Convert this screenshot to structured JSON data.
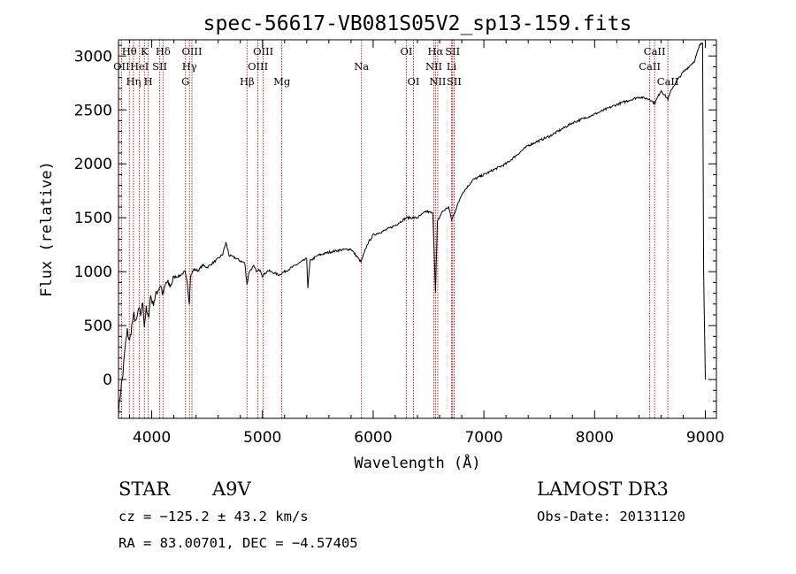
{
  "chart_data": {
    "type": "line",
    "title": "spec-56617-VB081S05V2_sp13-159.fits",
    "xlabel": "Wavelength (Å)",
    "ylabel": "Flux (relative)",
    "xlim": [
      3700,
      9100
    ],
    "ylim": [
      -360,
      3150
    ],
    "xticks": [
      4000,
      5000,
      6000,
      7000,
      8000,
      9000
    ],
    "yticks": [
      0,
      500,
      1000,
      1500,
      2000,
      2500,
      3000
    ],
    "grid": false,
    "series": [
      {
        "name": "spectrum",
        "x": [
          3700,
          3720,
          3740,
          3760,
          3780,
          3800,
          3820,
          3840,
          3860,
          3880,
          3900,
          3920,
          3933,
          3950,
          3968,
          3990,
          4010,
          4050,
          4080,
          4101,
          4130,
          4170,
          4200,
          4250,
          4300,
          4320,
          4340,
          4350,
          4380,
          4420,
          4460,
          4500,
          4550,
          4600,
          4640,
          4670,
          4700,
          4750,
          4800,
          4840,
          4861,
          4880,
          4920,
          4950,
          4980,
          5000,
          5050,
          5100,
          5150,
          5200,
          5300,
          5400,
          5410,
          5430,
          5500,
          5600,
          5700,
          5800,
          5890,
          5950,
          6000,
          6100,
          6200,
          6300,
          6400,
          6480,
          6540,
          6563,
          6580,
          6620,
          6680,
          6710,
          6800,
          6900,
          7000,
          7200,
          7400,
          7600,
          7800,
          8000,
          8200,
          8400,
          8498,
          8542,
          8600,
          8662,
          8700,
          8750,
          8800,
          8850,
          8900,
          8950,
          8975,
          8985,
          9000
        ],
        "y": [
          -300,
          -100,
          50,
          300,
          450,
          350,
          500,
          600,
          520,
          650,
          600,
          720,
          500,
          650,
          560,
          780,
          700,
          820,
          880,
          780,
          900,
          870,
          950,
          960,
          1000,
          900,
          700,
          960,
          1020,
          1010,
          1060,
          1040,
          1080,
          1120,
          1160,
          1270,
          1150,
          1130,
          1100,
          1080,
          880,
          1000,
          1050,
          1000,
          1020,
          960,
          1010,
          990,
          970,
          1000,
          1060,
          1120,
          850,
          1100,
          1150,
          1180,
          1200,
          1210,
          1090,
          1260,
          1340,
          1380,
          1430,
          1500,
          1500,
          1560,
          1540,
          800,
          1460,
          1550,
          1600,
          1480,
          1720,
          1850,
          1900,
          2000,
          2170,
          2260,
          2380,
          2460,
          2550,
          2620,
          2600,
          2560,
          2680,
          2600,
          2700,
          2780,
          2850,
          2900,
          2950,
          3100,
          3120,
          1000,
          0
        ]
      }
    ],
    "line_markers": [
      {
        "name": "OII",
        "wavelength": 3727,
        "row": 2
      },
      {
        "name": "Hθ",
        "wavelength": 3798,
        "row": 1
      },
      {
        "name": "Hη",
        "wavelength": 3835,
        "row": 3
      },
      {
        "name": "HeI",
        "wavelength": 3889,
        "row": 2
      },
      {
        "name": "K",
        "wavelength": 3934,
        "row": 1
      },
      {
        "name": "H",
        "wavelength": 3969,
        "row": 3
      },
      {
        "name": "SII",
        "wavelength": 4072,
        "row": 2
      },
      {
        "name": "Hδ",
        "wavelength": 4102,
        "row": 1
      },
      {
        "name": "G",
        "wavelength": 4305,
        "row": 3
      },
      {
        "name": "Hγ",
        "wavelength": 4341,
        "row": 2
      },
      {
        "name": "OIII",
        "wavelength": 4363,
        "row": 1
      },
      {
        "name": "Hβ",
        "wavelength": 4861,
        "row": 3
      },
      {
        "name": "OIII",
        "wavelength": 4959,
        "row": 2
      },
      {
        "name": "OIII",
        "wavelength": 5007,
        "row": 1
      },
      {
        "name": "Mg",
        "wavelength": 5175,
        "row": 3
      },
      {
        "name": "Na",
        "wavelength": 5894,
        "row": 2
      },
      {
        "name": "OI",
        "wavelength": 6300,
        "row": 1
      },
      {
        "name": "OI",
        "wavelength": 6364,
        "row": 3
      },
      {
        "name": "NII",
        "wavelength": 6548,
        "row": 2
      },
      {
        "name": "Hα",
        "wavelength": 6563,
        "row": 1
      },
      {
        "name": "NII",
        "wavelength": 6583,
        "row": 3
      },
      {
        "name": "Li",
        "wavelength": 6708,
        "row": 2
      },
      {
        "name": "SII",
        "wavelength": 6717,
        "row": 1
      },
      {
        "name": "SII",
        "wavelength": 6731,
        "row": 3
      },
      {
        "name": "CaII",
        "wavelength": 8498,
        "row": 2
      },
      {
        "name": "CaII",
        "wavelength": 8542,
        "row": 1
      },
      {
        "name": "CaII",
        "wavelength": 8662,
        "row": 3
      }
    ],
    "marker_color": "#cc2222",
    "line_color": "#000000"
  },
  "info": {
    "object_type": "STAR",
    "subclass": "A9V",
    "survey": "LAMOST DR3",
    "cz_text": "cz = −125.2 ± 43.2 km/s",
    "obs_date_text": "Obs-Date: 20131120",
    "radec_text": "RA =  83.00701, DEC =  −4.57405"
  }
}
